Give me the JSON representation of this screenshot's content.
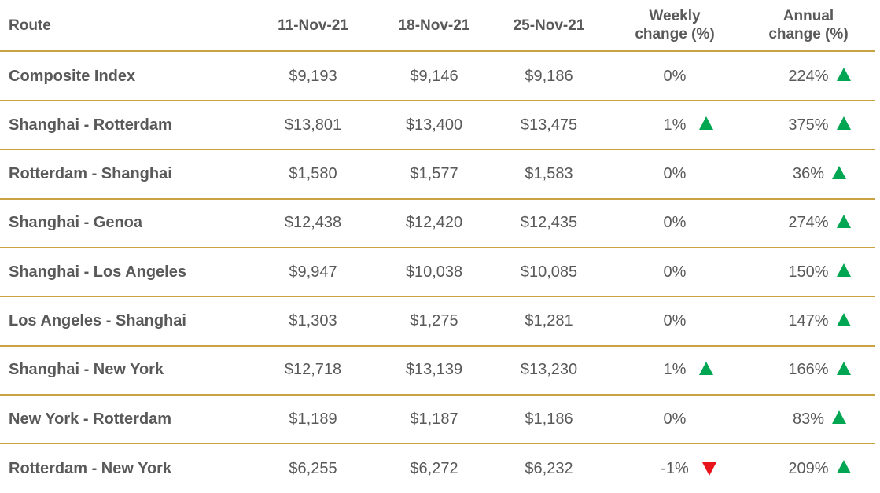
{
  "chart_data": {
    "type": "table",
    "columns": [
      "Route",
      "11-Nov-21",
      "18-Nov-21",
      "25-Nov-21",
      "Weekly change (%)",
      "Annual change (%)"
    ],
    "header": {
      "route": "Route",
      "d1": "11-Nov-21",
      "d2": "18-Nov-21",
      "d3": "25-Nov-21",
      "weekly_line1": "Weekly",
      "weekly_line2": "change (%)",
      "annual_line1": "Annual",
      "annual_line2": "change (%)"
    },
    "rows": [
      {
        "route": "Composite Index",
        "d1": "$9,193",
        "d2": "$9,146",
        "d3": "$9,186",
        "weekly": "0%",
        "weekly_dir": "none",
        "annual": "224%",
        "annual_dir": "up"
      },
      {
        "route": "Shanghai - Rotterdam",
        "d1": "$13,801",
        "d2": "$13,400",
        "d3": "$13,475",
        "weekly": "1%",
        "weekly_dir": "up",
        "annual": "375%",
        "annual_dir": "up"
      },
      {
        "route": "Rotterdam - Shanghai",
        "d1": "$1,580",
        "d2": "$1,577",
        "d3": "$1,583",
        "weekly": "0%",
        "weekly_dir": "none",
        "annual": "36%",
        "annual_dir": "up"
      },
      {
        "route": "Shanghai - Genoa",
        "d1": "$12,438",
        "d2": "$12,420",
        "d3": "$12,435",
        "weekly": "0%",
        "weekly_dir": "none",
        "annual": "274%",
        "annual_dir": "up"
      },
      {
        "route": "Shanghai - Los Angeles",
        "d1": "$9,947",
        "d2": "$10,038",
        "d3": "$10,085",
        "weekly": "0%",
        "weekly_dir": "none",
        "annual": "150%",
        "annual_dir": "up"
      },
      {
        "route": "Los Angeles - Shanghai",
        "d1": "$1,303",
        "d2": "$1,275",
        "d3": "$1,281",
        "weekly": "0%",
        "weekly_dir": "none",
        "annual": "147%",
        "annual_dir": "up"
      },
      {
        "route": "Shanghai - New York",
        "d1": "$12,718",
        "d2": "$13,139",
        "d3": "$13,230",
        "weekly": "1%",
        "weekly_dir": "up",
        "annual": "166%",
        "annual_dir": "up"
      },
      {
        "route": "New York - Rotterdam",
        "d1": "$1,189",
        "d2": "$1,187",
        "d3": "$1,186",
        "weekly": "0%",
        "weekly_dir": "none",
        "annual": "83%",
        "annual_dir": "up"
      },
      {
        "route": "Rotterdam - New York",
        "d1": "$6,255",
        "d2": "$6,272",
        "d3": "$6,232",
        "weekly": "-1%",
        "weekly_dir": "down",
        "annual": "209%",
        "annual_dir": "up"
      }
    ]
  },
  "colors": {
    "text": "#595959",
    "rule": "#c9a243",
    "up_arrow": "#00a651",
    "down_arrow": "#e8141c"
  },
  "icons": {
    "up": "triangle-up-icon",
    "down": "triangle-down-icon"
  }
}
